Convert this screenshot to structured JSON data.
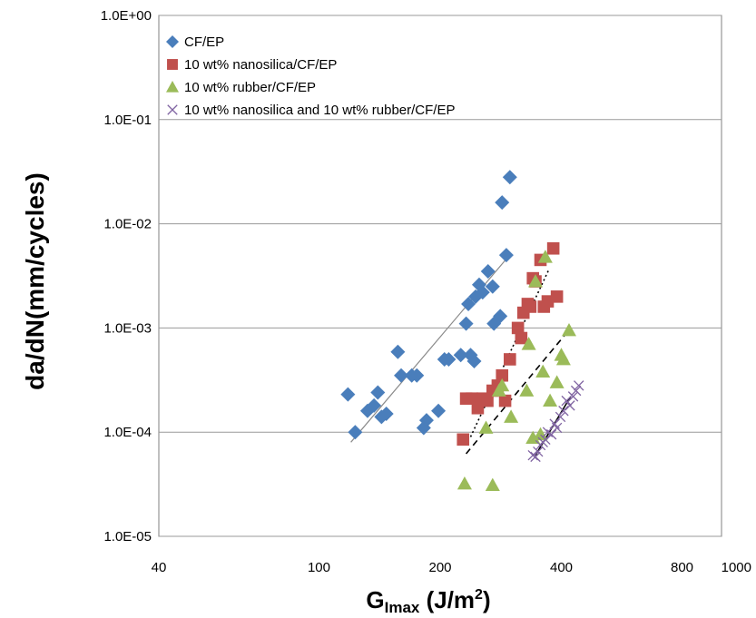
{
  "chart_data": {
    "type": "scatter",
    "xlabel": "G",
    "xlabel_sub": "Imax",
    "xlabel_unit": " (J/m",
    "xlabel_sup": "2",
    "xlabel_close": ")",
    "ylabel": "da/dN(mm/cycles)",
    "x_scale": "log",
    "y_scale": "log",
    "xlim": [
      40,
      1000
    ],
    "ylim": [
      1e-05,
      1
    ],
    "x_ticks": [
      {
        "value": 40,
        "label": "40"
      },
      {
        "value": 100,
        "label": "100"
      },
      {
        "value": 200,
        "label": "200"
      },
      {
        "value": 400,
        "label": "400"
      },
      {
        "value": 800,
        "label": "800"
      },
      {
        "value": 1000,
        "label": "1000"
      }
    ],
    "y_ticks": [
      {
        "value": 1e-05,
        "label": "1.0E-05"
      },
      {
        "value": 0.0001,
        "label": "1.0E-04"
      },
      {
        "value": 0.001,
        "label": "1.0E-03"
      },
      {
        "value": 0.01,
        "label": "1.0E-02"
      },
      {
        "value": 0.1,
        "label": "1.0E-01"
      },
      {
        "value": 1,
        "label": "1.0E+00"
      }
    ],
    "grid": "horizontal",
    "legend_position": "top-left",
    "series": [
      {
        "name": "CF/EP",
        "marker": "diamond",
        "color": "#4a7ebb",
        "points": [
          [
            118,
            0.00023
          ],
          [
            123,
            0.0001
          ],
          [
            132,
            0.00016
          ],
          [
            137,
            0.00018
          ],
          [
            140,
            0.00024
          ],
          [
            143,
            0.00014
          ],
          [
            147,
            0.00015
          ],
          [
            157,
            0.00059
          ],
          [
            160,
            0.00035
          ],
          [
            170,
            0.00035
          ],
          [
            175,
            0.00035
          ],
          [
            182,
            0.00011
          ],
          [
            185,
            0.00013
          ],
          [
            198,
            0.00016
          ],
          [
            205,
            0.0005
          ],
          [
            210,
            0.0005
          ],
          [
            225,
            0.00055
          ],
          [
            232,
            0.0011
          ],
          [
            235,
            0.0017
          ],
          [
            238,
            0.00055
          ],
          [
            243,
            0.00048
          ],
          [
            245,
            0.002
          ],
          [
            250,
            0.0026
          ],
          [
            255,
            0.0022
          ],
          [
            263,
            0.0035
          ],
          [
            270,
            0.0025
          ],
          [
            272,
            0.0011
          ],
          [
            282,
            0.0013
          ],
          [
            285,
            0.016
          ],
          [
            292,
            0.005
          ],
          [
            298,
            0.028
          ]
        ]
      },
      {
        "name": "10 wt% nanosilica/CF/EP",
        "marker": "square",
        "color": "#c0504d",
        "points": [
          [
            228,
            8.5e-05
          ],
          [
            232,
            0.00021
          ],
          [
            240,
            0.00021
          ],
          [
            248,
            0.00017
          ],
          [
            255,
            0.00021
          ],
          [
            262,
            0.0002
          ],
          [
            270,
            0.00025
          ],
          [
            278,
            0.00028
          ],
          [
            285,
            0.00035
          ],
          [
            290,
            0.0002
          ],
          [
            298,
            0.0005
          ],
          [
            312,
            0.001
          ],
          [
            318,
            0.0008
          ],
          [
            322,
            0.0014
          ],
          [
            330,
            0.0017
          ],
          [
            335,
            0.0016
          ],
          [
            340,
            0.003
          ],
          [
            345,
            0.0028
          ],
          [
            355,
            0.0045
          ],
          [
            362,
            0.0016
          ],
          [
            370,
            0.0018
          ],
          [
            382,
            0.0058
          ],
          [
            390,
            0.002
          ]
        ]
      },
      {
        "name": "10 wt% rubber/CF/EP",
        "marker": "triangle",
        "color": "#9bbb59",
        "points": [
          [
            230,
            3.2e-05
          ],
          [
            260,
            0.00011
          ],
          [
            270,
            3.1e-05
          ],
          [
            280,
            0.00025
          ],
          [
            285,
            0.00028
          ],
          [
            300,
            0.00014
          ],
          [
            328,
            0.00025
          ],
          [
            332,
            0.0007
          ],
          [
            340,
            8.8e-05
          ],
          [
            345,
            0.0028
          ],
          [
            355,
            9.5e-05
          ],
          [
            360,
            0.00038
          ],
          [
            365,
            0.0048
          ],
          [
            375,
            0.0002
          ],
          [
            390,
            0.0003
          ],
          [
            400,
            0.00055
          ],
          [
            405,
            0.0005
          ],
          [
            418,
            0.00095
          ]
        ]
      },
      {
        "name": "10 wt% nanosilica and 10 wt% rubber/CF/EP",
        "marker": "x",
        "color": "#8064a2",
        "points": [
          [
            340,
            6e-05
          ],
          [
            345,
            5.8e-05
          ],
          [
            350,
            6.5e-05
          ],
          [
            355,
            7.5e-05
          ],
          [
            360,
            8e-05
          ],
          [
            365,
            8.5e-05
          ],
          [
            370,
            0.0001
          ],
          [
            378,
            9.5e-05
          ],
          [
            385,
            0.00012
          ],
          [
            390,
            0.00011
          ],
          [
            398,
            0.00014
          ],
          [
            405,
            0.00016
          ],
          [
            412,
            0.0002
          ],
          [
            420,
            0.00018
          ],
          [
            428,
            0.00022
          ],
          [
            435,
            0.00025
          ],
          [
            442,
            0.00028
          ]
        ]
      }
    ],
    "trendlines": [
      {
        "series": "CF/EP",
        "style": "solid",
        "from": [
          120,
          8e-05
        ],
        "to": [
          300,
          0.0052
        ]
      },
      {
        "series": "10 wt% nanosilica/CF/EP",
        "style": "dotted",
        "from": [
          238,
          9e-05
        ],
        "to": [
          372,
          0.0036
        ]
      },
      {
        "series": "10 wt% rubber/CF/EP",
        "style": "dashed",
        "from": [
          232,
          6.2e-05
        ],
        "to": [
          422,
          0.001
        ]
      },
      {
        "series": "10 wt% nanosilica and 10 wt% rubber/CF/EP",
        "style": "solid",
        "from": [
          345,
          6e-05
        ],
        "to": [
          422,
          0.00022
        ]
      }
    ]
  }
}
